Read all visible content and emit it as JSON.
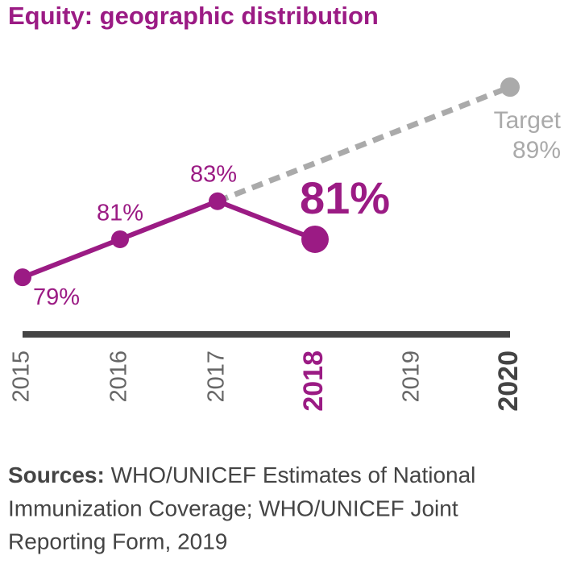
{
  "chart_data": {
    "type": "line",
    "title": "Equity: geographic distribution",
    "x": [
      2015,
      2016,
      2017,
      2018,
      2019,
      2020
    ],
    "xticks": [
      2015,
      2016,
      2017,
      2018,
      2019,
      2020
    ],
    "ylim": [
      76,
      90
    ],
    "series": [
      {
        "name": null,
        "color": "#9b1b84",
        "x": [
          2015,
          2016,
          2017,
          2018
        ],
        "values": [
          79,
          81,
          83,
          81
        ],
        "value_labels": [
          "79%",
          "81%",
          "83%",
          "81%"
        ]
      },
      {
        "name": "Target",
        "color": "#aaaaaa",
        "dashed": true,
        "x": [
          2017,
          2020
        ],
        "values": [
          83,
          89
        ],
        "value_labels": [
          null,
          "89%"
        ]
      }
    ],
    "sources": {
      "label": "Sources:",
      "lines": [
        "WHO/UNICEF Estimates of National",
        "Immunization Coverage; WHO/UNICEF Joint",
        "Reporting Form, 2019"
      ]
    }
  }
}
